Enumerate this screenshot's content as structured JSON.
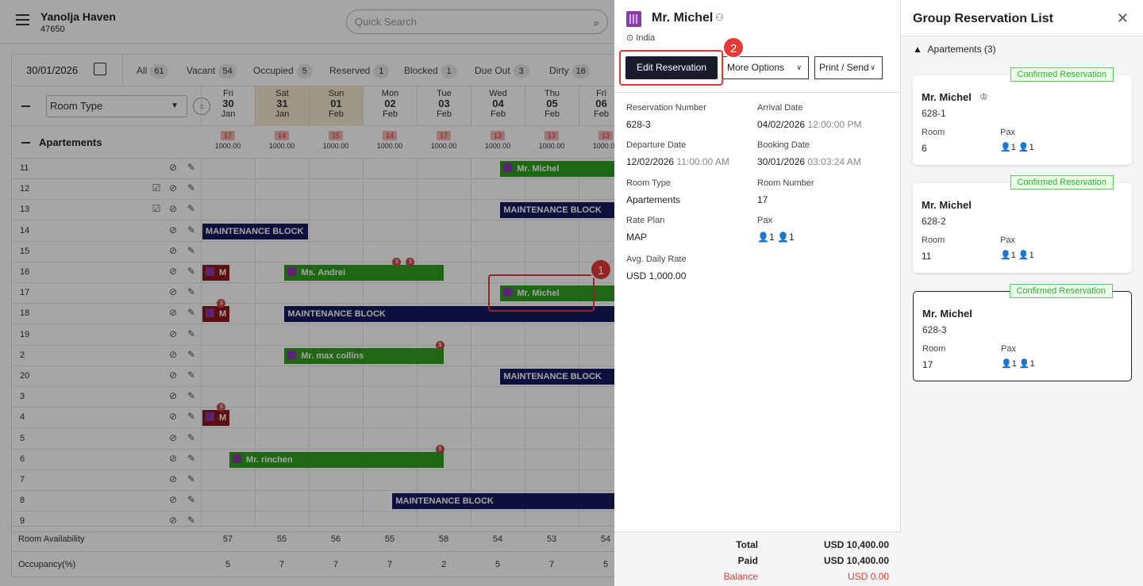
{
  "header": {
    "hotel_name": "Yanolja Haven",
    "hotel_id": "47650",
    "search_placeholder": "Quick Search"
  },
  "calendar": {
    "date": "30/01/2026",
    "filters": [
      {
        "label": "All",
        "count": "61"
      },
      {
        "label": "Vacant",
        "count": "54"
      },
      {
        "label": "Occupied",
        "count": "5"
      },
      {
        "label": "Reserved",
        "count": "1"
      },
      {
        "label": "Blocked",
        "count": "1"
      },
      {
        "label": "Due Out",
        "count": "3"
      },
      {
        "label": "Dirty",
        "count": "16"
      }
    ],
    "room_type_label": "Room Type",
    "days": [
      {
        "dow": "Fri",
        "d": "30",
        "m": "Jan",
        "weekend": false,
        "avail": "17",
        "rate": "1000.00",
        "room_avail": "57",
        "occ": "5"
      },
      {
        "dow": "Sat",
        "d": "31",
        "m": "Jan",
        "weekend": true,
        "avail": "14",
        "rate": "1000.00",
        "room_avail": "55",
        "occ": "7"
      },
      {
        "dow": "Sun",
        "d": "01",
        "m": "Feb",
        "weekend": true,
        "avail": "15",
        "rate": "1000.00",
        "room_avail": "56",
        "occ": "7"
      },
      {
        "dow": "Mon",
        "d": "02",
        "m": "Feb",
        "weekend": false,
        "avail": "14",
        "rate": "1000.00",
        "room_avail": "55",
        "occ": "7"
      },
      {
        "dow": "Tue",
        "d": "03",
        "m": "Feb",
        "weekend": false,
        "avail": "17",
        "rate": "1000.00",
        "room_avail": "58",
        "occ": "2"
      },
      {
        "dow": "Wed",
        "d": "04",
        "m": "Feb",
        "weekend": false,
        "avail": "13",
        "rate": "1000.00",
        "room_avail": "54",
        "occ": "5"
      },
      {
        "dow": "Thu",
        "d": "05",
        "m": "Feb",
        "weekend": false,
        "avail": "13",
        "rate": "1000.00",
        "room_avail": "53",
        "occ": "7"
      },
      {
        "dow": "Fri",
        "d": "06",
        "m": "Feb",
        "weekend": false,
        "avail": "13",
        "rate": "1000.00",
        "room_avail": "54",
        "occ": "5"
      }
    ],
    "group_label": "Apartements",
    "rooms": [
      "11",
      "12",
      "13",
      "14",
      "15",
      "16",
      "17",
      "18",
      "19",
      "2",
      "20",
      "3",
      "4",
      "5",
      "6",
      "7",
      "8",
      "9"
    ],
    "bars": [
      {
        "row": 0,
        "text": "Mr. Michel",
        "color": "green",
        "start": 5.55,
        "span": 2.5,
        "icon": true
      },
      {
        "row": 2,
        "text": "MAINTENANCE BLOCK",
        "color": "navy",
        "start": 5.55,
        "span": 2.5,
        "icon": false
      },
      {
        "row": 3,
        "text": "MAINTENANCE BLOCK",
        "color": "navy",
        "start": 0.03,
        "span": 1.95,
        "icon": false
      },
      {
        "row": 5,
        "text": "M",
        "color": "red",
        "start": 0.03,
        "span": 0.5,
        "icon": true
      },
      {
        "row": 5,
        "text": "Ms. Andrei",
        "color": "green",
        "start": 1.55,
        "span": 2.95,
        "icon": true
      },
      {
        "row": 6,
        "text": "Mr. Michel",
        "color": "green",
        "start": 5.55,
        "span": 2.5,
        "icon": true
      },
      {
        "row": 7,
        "text": "M",
        "color": "red",
        "start": 0.03,
        "span": 0.5,
        "icon": true
      },
      {
        "row": 7,
        "text": "MAINTENANCE BLOCK",
        "color": "navy",
        "start": 1.55,
        "span": 6.5,
        "icon": false
      },
      {
        "row": 9,
        "text": "Mr. max collins",
        "color": "green",
        "start": 1.55,
        "span": 2.95,
        "icon": true
      },
      {
        "row": 10,
        "text": "MAINTENANCE BLOCK",
        "color": "navy",
        "start": 5.55,
        "span": 2.5,
        "icon": false
      },
      {
        "row": 12,
        "text": "M",
        "color": "red",
        "start": 0.03,
        "span": 0.5,
        "icon": true
      },
      {
        "row": 14,
        "text": "Mr. rinchen",
        "color": "green",
        "start": 0.53,
        "span": 3.97,
        "icon": true
      },
      {
        "row": 16,
        "text": "MAINTENANCE BLOCK",
        "color": "navy",
        "start": 3.55,
        "span": 4.5,
        "icon": false
      }
    ],
    "footer": {
      "room_availability": "Room Availability",
      "occupancy": "Occupancy(%)"
    }
  },
  "reservation": {
    "guest_name": "Mr. Michel",
    "location": "India",
    "edit_label": "Edit Reservation",
    "more_options_label": "More Options",
    "print_label": "Print / Send",
    "fields": {
      "res_num_label": "Reservation Number",
      "res_num": "628-3",
      "arrival_label": "Arrival Date",
      "arrival_date": "04/02/2026",
      "arrival_time": "12:00:00 PM",
      "departure_label": "Departure Date",
      "departure_date": "12/02/2026",
      "departure_time": "11:00:00 AM",
      "booking_label": "Booking Date",
      "booking_date": "30/01/2026",
      "booking_time": "03:03:24 AM",
      "room_type_label": "Room Type",
      "room_type": "Apartements",
      "room_number_label": "Room Number",
      "room_number": "17",
      "rate_plan_label": "Rate Plan",
      "rate_plan": "MAP",
      "pax_label": "Pax",
      "pax_adults": "1",
      "pax_children": "1",
      "adr_label": "Avg. Daily Rate",
      "adr": "USD 1,000.00"
    },
    "totals": {
      "total_label": "Total",
      "total": "USD 10,400.00",
      "paid_label": "Paid",
      "paid": "USD 10,400.00",
      "balance_label": "Balance",
      "balance": "USD 0.00"
    }
  },
  "group": {
    "title": "Group Reservation List",
    "section": "Apartements (3)",
    "room_label": "Room",
    "pax_label": "Pax",
    "cards": [
      {
        "status": "Confirmed Reservation",
        "name": "Mr. Michel",
        "code": "628-1",
        "room": "6",
        "adults": "1",
        "children": "1",
        "selected": false
      },
      {
        "status": "Confirmed Reservation",
        "name": "Mr. Michel",
        "code": "628-2",
        "room": "11",
        "adults": "1",
        "children": "1",
        "selected": false
      },
      {
        "status": "Confirmed Reservation",
        "name": "Mr. Michel",
        "code": "628-3",
        "room": "17",
        "adults": "1",
        "children": "1",
        "selected": true
      }
    ]
  },
  "annotations": [
    "1",
    "2"
  ]
}
